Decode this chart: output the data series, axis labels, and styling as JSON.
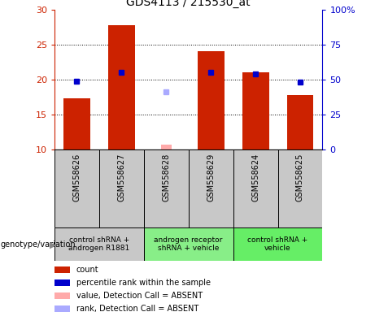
{
  "title": "GDS4113 / 215530_at",
  "samples": [
    "GSM558626",
    "GSM558627",
    "GSM558628",
    "GSM558629",
    "GSM558624",
    "GSM558625"
  ],
  "count_values": [
    17.3,
    27.8,
    null,
    24.0,
    21.0,
    17.8
  ],
  "count_absent_values": [
    null,
    null,
    10.7,
    null,
    null,
    null
  ],
  "percentile_values": [
    19.8,
    21.0,
    null,
    21.0,
    20.8,
    19.7
  ],
  "percentile_absent_values": [
    null,
    null,
    18.3,
    null,
    null,
    null
  ],
  "ylim_left": [
    10,
    30
  ],
  "ylim_right": [
    0,
    100
  ],
  "yticks_left": [
    10,
    15,
    20,
    25,
    30
  ],
  "yticks_right": [
    0,
    25,
    50,
    75,
    100
  ],
  "ytick_labels_right": [
    "0",
    "25",
    "50",
    "75",
    "100%"
  ],
  "group_labels": [
    "control shRNA +\nandrogen R1881",
    "androgen receptor\nshRNA + vehicle",
    "control shRNA +\nvehicle"
  ],
  "group_colors": [
    "#c8c8c8",
    "#88ee88",
    "#66ee66"
  ],
  "group_bg_color": "#c8c8c8",
  "bar_color": "#cc2200",
  "absent_bar_color": "#ffaaaa",
  "blue_marker_color": "#0000cc",
  "absent_rank_color": "#aaaaff",
  "left_label_color": "#cc2200",
  "right_label_color": "#0000cc",
  "dotted_lines": [
    15,
    20,
    25
  ],
  "legend_items": [
    [
      "#cc2200",
      "count"
    ],
    [
      "#0000cc",
      "percentile rank within the sample"
    ],
    [
      "#ffaaaa",
      "value, Detection Call = ABSENT"
    ],
    [
      "#aaaaff",
      "rank, Detection Call = ABSENT"
    ]
  ]
}
